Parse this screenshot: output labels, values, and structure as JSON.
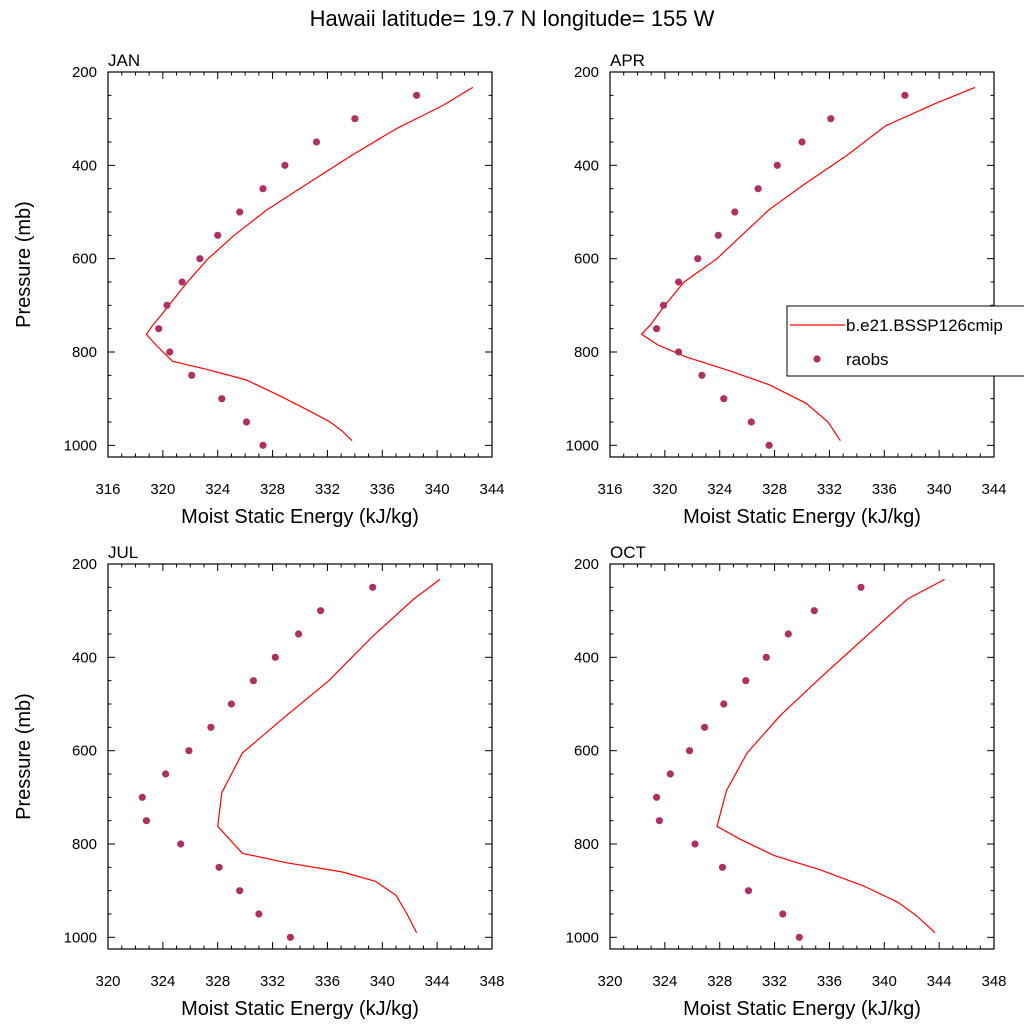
{
  "figure": {
    "title": "Hawaii  latitude= 19.7 N longitude= 155 W",
    "ylabel": "Pressure (mb)",
    "xlabel": "Moist Static Energy (kJ/kg)"
  },
  "legend": {
    "placement": "right-middle of APR panel",
    "entries": [
      {
        "name": "b.e21.BSSP126cmip",
        "style": "line",
        "color": "#ff0000"
      },
      {
        "name": "raobs",
        "style": "marker",
        "color": "#b03060"
      }
    ]
  },
  "colors": {
    "model_line": "#ff0000",
    "obs_marker": "#b03060"
  },
  "chart_data": [
    {
      "type": "line",
      "panel": "JAN",
      "title": "JAN",
      "xlabel": "Moist Static Energy (kJ/kg)",
      "ylabel": "Pressure (mb)",
      "xlim": [
        316,
        344
      ],
      "xticks": [
        316,
        320,
        324,
        328,
        332,
        336,
        340,
        344
      ],
      "ylim": [
        1025,
        200
      ],
      "yticks": [
        200,
        400,
        600,
        800,
        1000
      ],
      "y_inverted": true,
      "series": [
        {
          "name": "b.e21.BSSP126cmip",
          "kind": "line",
          "x": [
            342.6,
            340.4,
            337.0,
            333.8,
            330.5,
            327.6,
            325.2,
            323.3,
            321.8,
            320.7,
            319.9,
            319.2,
            318.8,
            319.5,
            320.7,
            323.3,
            326.1,
            328.6,
            330.6,
            332.2,
            333.1,
            333.8
          ],
          "y": [
            233,
            272,
            322,
            378,
            440,
            495,
            550,
            600,
            650,
            690,
            720,
            745,
            762,
            785,
            820,
            838,
            860,
            895,
            925,
            950,
            970,
            990
          ]
        },
        {
          "name": "raobs",
          "kind": "scatter",
          "x": [
            338.5,
            334.0,
            331.2,
            328.9,
            327.3,
            325.6,
            324.0,
            322.7,
            321.4,
            320.3,
            319.7,
            320.5,
            322.1,
            324.3,
            326.1,
            327.3
          ],
          "y": [
            250,
            300,
            350,
            400,
            450,
            500,
            550,
            600,
            650,
            700,
            750,
            800,
            850,
            900,
            950,
            1000
          ]
        }
      ]
    },
    {
      "type": "line",
      "panel": "APR",
      "title": "APR",
      "xlabel": "Moist Static Energy (kJ/kg)",
      "ylabel": "",
      "xlim": [
        316,
        344
      ],
      "xticks": [
        316,
        320,
        324,
        328,
        332,
        336,
        340,
        344
      ],
      "ylim": [
        1025,
        200
      ],
      "yticks": [
        200,
        400,
        600,
        800,
        1000
      ],
      "y_inverted": true,
      "series": [
        {
          "name": "b.e21.BSSP126cmip",
          "kind": "line",
          "x": [
            342.6,
            339.7,
            336.1,
            333.3,
            330.2,
            327.6,
            325.6,
            323.8,
            321.4,
            320.0,
            319.0,
            318.3,
            319.5,
            321.5,
            324.7,
            327.6,
            330.3,
            331.9,
            332.8
          ],
          "y": [
            233,
            268,
            315,
            378,
            440,
            495,
            550,
            600,
            650,
            700,
            740,
            762,
            785,
            810,
            840,
            870,
            910,
            950,
            990
          ]
        },
        {
          "name": "raobs",
          "kind": "scatter",
          "x": [
            337.5,
            332.1,
            330.0,
            328.2,
            326.8,
            325.1,
            323.9,
            322.4,
            321.0,
            319.9,
            319.4,
            321.0,
            322.7,
            324.3,
            326.3,
            327.6
          ],
          "y": [
            250,
            300,
            350,
            400,
            450,
            500,
            550,
            600,
            650,
            700,
            750,
            800,
            850,
            900,
            950,
            1000
          ]
        }
      ]
    },
    {
      "type": "line",
      "panel": "JUL",
      "title": "JUL",
      "xlabel": "Moist Static Energy (kJ/kg)",
      "ylabel": "Pressure (mb)",
      "xlim": [
        320,
        348
      ],
      "xticks": [
        320,
        324,
        328,
        332,
        336,
        340,
        344,
        348
      ],
      "ylim": [
        1025,
        200
      ],
      "yticks": [
        200,
        400,
        600,
        800,
        1000
      ],
      "y_inverted": true,
      "series": [
        {
          "name": "b.e21.BSSP126cmip",
          "kind": "line",
          "x": [
            344.2,
            342.3,
            339.3,
            336.1,
            333.0,
            329.8,
            328.3,
            328.0,
            329.8,
            333.0,
            337.1,
            339.5,
            341.0,
            341.8,
            342.5
          ],
          "y": [
            233,
            275,
            355,
            450,
            525,
            605,
            690,
            762,
            820,
            840,
            860,
            880,
            910,
            950,
            990
          ]
        },
        {
          "name": "raobs",
          "kind": "scatter",
          "x": [
            339.3,
            335.5,
            333.9,
            332.2,
            330.6,
            329.0,
            327.5,
            325.9,
            324.2,
            322.5,
            322.8,
            325.3,
            328.1,
            329.6,
            331.0,
            333.3
          ],
          "y": [
            250,
            300,
            350,
            400,
            450,
            500,
            550,
            600,
            650,
            700,
            750,
            800,
            850,
            900,
            950,
            1000
          ]
        }
      ]
    },
    {
      "type": "line",
      "panel": "OCT",
      "title": "OCT",
      "xlabel": "Moist Static Energy (kJ/kg)",
      "ylabel": "",
      "xlim": [
        320,
        348
      ],
      "xticks": [
        320,
        324,
        328,
        332,
        336,
        340,
        344,
        348
      ],
      "ylim": [
        1025,
        200
      ],
      "yticks": [
        200,
        400,
        600,
        800,
        1000
      ],
      "y_inverted": true,
      "series": [
        {
          "name": "b.e21.BSSP126cmip",
          "kind": "line",
          "x": [
            344.4,
            341.7,
            338.3,
            335.3,
            332.4,
            330.0,
            328.5,
            327.8,
            329.5,
            332.0,
            335.3,
            338.5,
            341.0,
            342.4,
            343.7
          ],
          "y": [
            233,
            275,
            365,
            445,
            525,
            605,
            685,
            762,
            790,
            825,
            855,
            890,
            925,
            955,
            990
          ]
        },
        {
          "name": "raobs",
          "kind": "scatter",
          "x": [
            338.3,
            334.9,
            333.0,
            331.4,
            329.9,
            328.3,
            326.9,
            325.8,
            324.4,
            323.4,
            323.6,
            326.2,
            328.2,
            330.1,
            332.6,
            333.8
          ],
          "y": [
            250,
            300,
            350,
            400,
            450,
            500,
            550,
            600,
            650,
            700,
            750,
            800,
            850,
            900,
            950,
            1000
          ]
        }
      ]
    }
  ]
}
